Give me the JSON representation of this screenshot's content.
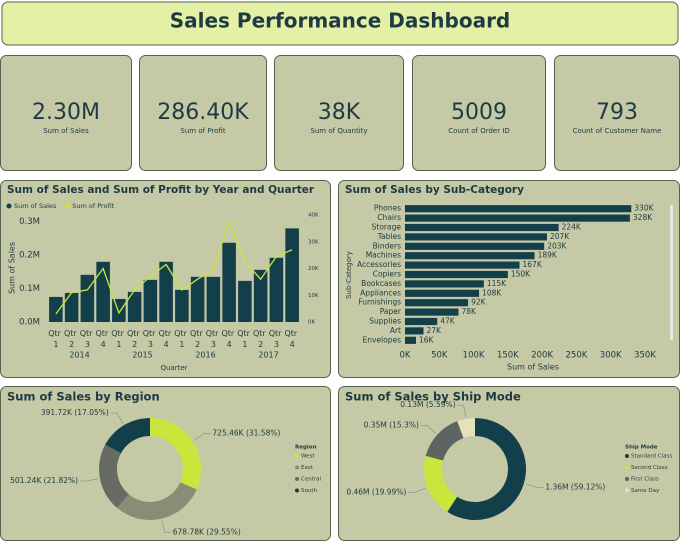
{
  "title": "Sales Performance Dashboard",
  "kpis": [
    {
      "value": "2.30M",
      "label": "Sum of Sales"
    },
    {
      "value": "286.40K",
      "label": "Sum of Profit"
    },
    {
      "value": "38K",
      "label": "Sum of Quantity"
    },
    {
      "value": "5009",
      "label": "Count of Order ID"
    },
    {
      "value": "793",
      "label": "Count of Customer Name"
    }
  ],
  "chart_data": [
    {
      "type": "combo",
      "title": "Sum of Sales and Sum of Profit by Year and Quarter",
      "categories": [
        "Qtr 1",
        "Qtr 2",
        "Qtr 3",
        "Qtr 4",
        "Qtr 1",
        "Qtr 2",
        "Qtr 3",
        "Qtr 4",
        "Qtr 1",
        "Qtr 2",
        "Qtr 3",
        "Qtr 4",
        "Qtr 1",
        "Qtr 2",
        "Qtr 3",
        "Qtr 4"
      ],
      "x_groups": [
        "2014",
        "2015",
        "2016",
        "2017"
      ],
      "x_label": "Quarter",
      "y_label": "Sum of Sales",
      "series": [
        {
          "name": "Sum of Sales",
          "color": "#133f4b",
          "kind": "bar",
          "values": [
            75000,
            87000,
            141000,
            180000,
            69000,
            90000,
            126000,
            180000,
            96000,
            135000,
            135000,
            237000,
            123000,
            156000,
            192000,
            280000
          ]
        },
        {
          "name": "Sum of Profit",
          "color": "#c8e63c",
          "kind": "line",
          "axis": "y2",
          "values": [
            3000,
            11000,
            12000,
            20000,
            3400,
            12000,
            17000,
            21500,
            12000,
            16000,
            19600,
            37700,
            22600,
            16000,
            24500,
            27000
          ]
        }
      ],
      "ylim": [
        0,
        320000
      ],
      "yticks": [
        {
          "value": 0,
          "label": "0.0M"
        },
        {
          "value": 100000,
          "label": "0.1M"
        },
        {
          "value": 200000,
          "label": "0.2M"
        },
        {
          "value": 300000,
          "label": "0.3M"
        }
      ],
      "y2lim": [
        0,
        40000
      ],
      "y2ticks": [
        {
          "value": 0,
          "label": "0K"
        },
        {
          "value": 10000,
          "label": "10K"
        },
        {
          "value": 20000,
          "label": "20K"
        },
        {
          "value": 30000,
          "label": "30K"
        },
        {
          "value": 40000,
          "label": "40K"
        }
      ]
    },
    {
      "type": "hbar",
      "title": "Sum of Sales by Sub-Category",
      "color": "#133f4b",
      "x_label": "Sum of Sales",
      "y_label": "Sub-Category",
      "categories": [
        "Phones",
        "Chairs",
        "Storage",
        "Tables",
        "Binders",
        "Machines",
        "Accessories",
        "Copiers",
        "Bookcases",
        "Appliances",
        "Furnishings",
        "Paper",
        "Supplies",
        "Art",
        "Envelopes"
      ],
      "values": [
        330000,
        328000,
        224000,
        207000,
        203000,
        189000,
        167000,
        150000,
        115000,
        108000,
        92000,
        78000,
        47000,
        27000,
        16000
      ],
      "value_labels": [
        "330K",
        "328K",
        "224K",
        "207K",
        "203K",
        "189K",
        "167K",
        "150K",
        "115K",
        "108K",
        "92K",
        "78K",
        "47K",
        "27K",
        "16K"
      ],
      "xlim": [
        0,
        350000
      ],
      "xticks": [
        {
          "value": 0,
          "label": "0K"
        },
        {
          "value": 50000,
          "label": "50K"
        },
        {
          "value": 100000,
          "label": "100K"
        },
        {
          "value": 150000,
          "label": "150K"
        },
        {
          "value": 200000,
          "label": "200K"
        },
        {
          "value": 250000,
          "label": "250K"
        },
        {
          "value": 300000,
          "label": "300K"
        },
        {
          "value": 350000,
          "label": "350K"
        }
      ]
    },
    {
      "type": "donut",
      "title": "Sum of Sales by Region",
      "legend_title": "Region",
      "categories": [
        "West",
        "East",
        "Central",
        "South"
      ],
      "values": [
        725460,
        678780,
        501240,
        391720
      ],
      "value_labels": [
        "725.46K (31.58%)",
        "678.78K (29.55%)",
        "501.24K (21.82%)",
        "391.72K (17.05%)"
      ],
      "colors": [
        "#c8e63c",
        "#8a8c76",
        "#666c64",
        "#133f4b"
      ]
    },
    {
      "type": "donut",
      "title": "Sum of Sales by Ship Mode",
      "legend_title": "Ship Mode",
      "categories": [
        "Standard Class",
        "Second Class",
        "First Class",
        "Same Day"
      ],
      "values": [
        1360000,
        460000,
        350000,
        130000
      ],
      "value_labels": [
        "1.36M (59.12%)",
        "0.46M (19.99%)",
        "0.35M (15.3%)",
        "0.13M (5.59%)"
      ],
      "colors": [
        "#133f4b",
        "#c8e63c",
        "#5c6562",
        "#e3e2b8"
      ]
    }
  ]
}
